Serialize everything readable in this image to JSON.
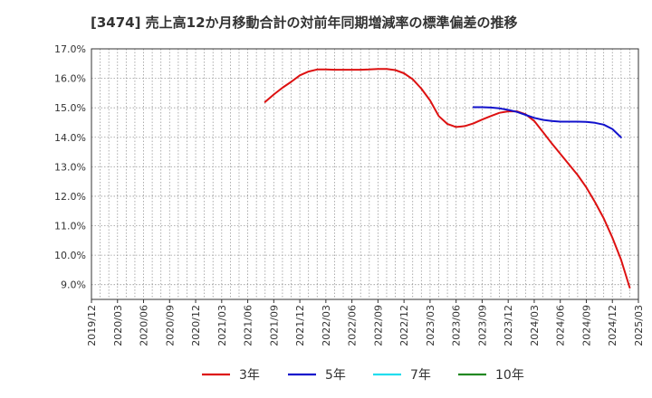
{
  "chart_data": {
    "type": "line",
    "title": "[3474]  売上高12か月移動合計の対前年同期増減率の標準偏差の推移",
    "xlabel": "",
    "ylabel": "",
    "ylim": [
      8.5,
      17.0
    ],
    "yticks": [
      9.0,
      10.0,
      11.0,
      12.0,
      13.0,
      14.0,
      15.0,
      16.0,
      17.0
    ],
    "ytick_labels": [
      "9.0%",
      "10.0%",
      "11.0%",
      "12.0%",
      "13.0%",
      "14.0%",
      "15.0%",
      "16.0%",
      "17.0%"
    ],
    "x_start": "2019-12",
    "x_end": "2025-03",
    "xtick_labels": [
      "2019/12",
      "2020/03",
      "2020/06",
      "2020/09",
      "2020/12",
      "2021/03",
      "2021/06",
      "2021/09",
      "2021/12",
      "2022/03",
      "2022/06",
      "2022/09",
      "2022/12",
      "2023/03",
      "2023/06",
      "2023/09",
      "2023/12",
      "2024/03",
      "2024/06",
      "2024/09",
      "2024/12",
      "2025/03"
    ],
    "grid": true,
    "legend_position": "bottom",
    "series": [
      {
        "name": "3年",
        "color": "#dd1111",
        "start": "2021-08",
        "values": [
          15.2,
          15.45,
          15.68,
          15.88,
          16.1,
          16.23,
          16.3,
          16.3,
          16.29,
          16.29,
          16.29,
          16.29,
          16.3,
          16.32,
          16.32,
          16.28,
          16.17,
          15.97,
          15.65,
          15.25,
          14.72,
          14.45,
          14.35,
          14.38,
          14.47,
          14.6,
          14.72,
          14.83,
          14.88,
          14.88,
          14.78,
          14.55,
          14.18,
          13.8,
          13.44,
          13.08,
          12.72,
          12.3,
          11.8,
          11.25,
          10.6,
          9.85,
          8.9
        ]
      },
      {
        "name": "5年",
        "color": "#1111cc",
        "start": "2023-08",
        "values": [
          15.02,
          15.02,
          15.01,
          14.98,
          14.93,
          14.86,
          14.76,
          14.66,
          14.59,
          14.55,
          14.53,
          14.53,
          14.53,
          14.52,
          14.49,
          14.43,
          14.28,
          14.0
        ]
      },
      {
        "name": "7年",
        "color": "#22ddee",
        "start": "2024-12",
        "values": []
      },
      {
        "name": "10年",
        "color": "#228822",
        "start": "2024-12",
        "values": []
      }
    ]
  }
}
